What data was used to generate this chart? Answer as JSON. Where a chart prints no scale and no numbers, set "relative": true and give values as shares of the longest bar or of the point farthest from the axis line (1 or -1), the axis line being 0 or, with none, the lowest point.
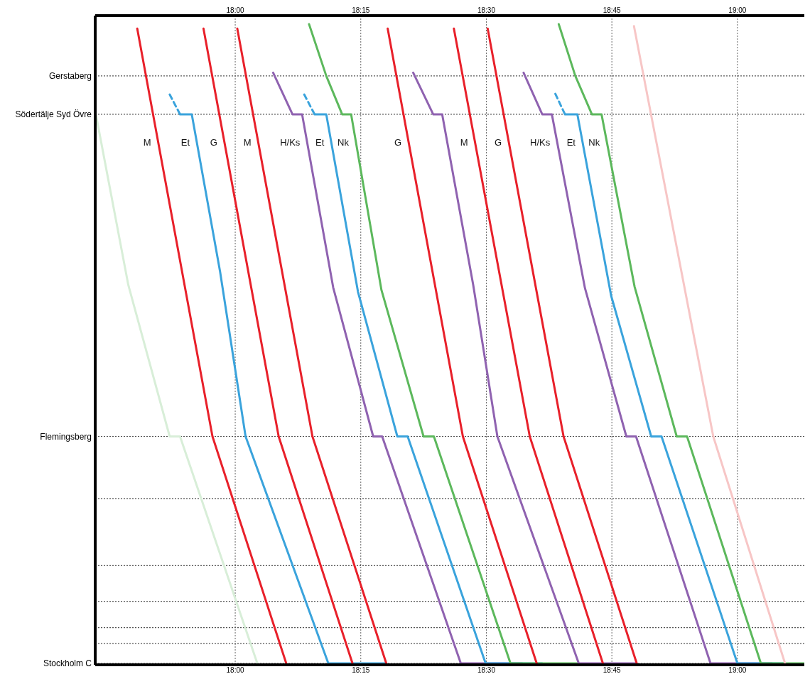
{
  "chart_data": {
    "type": "line",
    "relative": true,
    "grid": "x",
    "marker": "none",
    "line_style": "solid",
    "x2lim": [
      17.7212,
      19.1332
    ],
    "xlim": [
      17.7212,
      19.1332
    ],
    "xticks": [
      {
        "value": 18,
        "label": "18:00"
      },
      {
        "value": 18.25,
        "label": "18:15"
      },
      {
        "value": 18.5,
        "label": "18:30"
      },
      {
        "value": 18.75,
        "label": "18:45"
      },
      {
        "value": 19,
        "label": "19:00"
      }
    ],
    "x2ticks": [
      {
        "value": 18,
        "label": "18:00"
      },
      {
        "value": 18.25,
        "label": "18:15"
      },
      {
        "value": 18.5,
        "label": "18:30"
      },
      {
        "value": 18.75,
        "label": "18:45"
      },
      {
        "value": 19,
        "label": "19:00"
      }
    ],
    "ref_lines": [
      {
        "axis": "y",
        "value": 0.919,
        "label": "Gerstaberg",
        "line_style": "dotted"
      },
      {
        "axis": "y",
        "value": 0.859,
        "label": "Södertälje Syd Övre",
        "line_style": "dotted"
      },
      {
        "axis": "y",
        "value": 0.355,
        "label": "Flemingsberg",
        "line_style": "dotted"
      },
      {
        "axis": "y",
        "value": 0.258,
        "line_style": "dotted"
      },
      {
        "axis": "y",
        "value": 0.153,
        "line_style": "dotted"
      },
      {
        "axis": "y",
        "value": 0.097,
        "line_style": "dotted"
      },
      {
        "axis": "y",
        "value": 0.056,
        "line_style": "dotted"
      },
      {
        "axis": "y",
        "value": 0.031,
        "line_style": "dotted"
      },
      {
        "axis": "y",
        "value": 0,
        "label": "Stockholm C",
        "line_style": "dotted"
      }
    ],
    "series": [
      {
        "color": "#d8eed8",
        "x": [
          17.7225,
          17.7871,
          17.8695,
          17.8901,
          18.044
        ],
        "values": [
          0.859,
          0.592,
          0.355,
          0.355,
          0
        ]
      },
      {
        "name": "M",
        "color": "#e8202a",
        "x": [
          17.8049,
          17.9547,
          18.1016
        ],
        "values": [
          0.993,
          0.355,
          0
        ]
      },
      {
        "color": "#3aa3dc",
        "line_style": "dashed",
        "x": [
          17.8695,
          17.8901
        ],
        "values": [
          0.89,
          0.859
        ]
      },
      {
        "name": "Et",
        "color": "#3aa3dc",
        "x": [
          17.8901,
          17.9135,
          17.9698,
          18.0206,
          18.1854,
          18.3008
        ],
        "values": [
          0.859,
          0.859,
          0.613,
          0.355,
          0,
          0
        ]
      },
      {
        "name": "G",
        "color": "#e8202a",
        "x": [
          17.9368,
          18.0865,
          18.2335
        ],
        "values": [
          0.993,
          0.355,
          0
        ]
      },
      {
        "name": "M",
        "color": "#e8202a",
        "x": [
          18.0041,
          18.1538,
          18.3008
        ],
        "values": [
          0.993,
          0.355,
          0
        ]
      },
      {
        "name": "H/Ks",
        "color": "#8f62b0",
        "x": [
          18.0755,
          18.114,
          18.1332,
          18.1951,
          18.2747,
          18.2926,
          18.4492,
          18.5714
        ],
        "values": [
          0.924,
          0.859,
          0.859,
          0.588,
          0.355,
          0.355,
          0,
          0
        ]
      },
      {
        "color": "#3aa3dc",
        "line_style": "dashed",
        "x": [
          18.1374,
          18.158
        ],
        "values": [
          0.89,
          0.859
        ]
      },
      {
        "name": "Et",
        "color": "#3aa3dc",
        "x": [
          18.158,
          18.1813,
          18.2445,
          18.3228,
          18.3434,
          18.4986,
          18.6113
        ],
        "values": [
          0.859,
          0.859,
          0.581,
          0.355,
          0.355,
          0,
          0
        ]
      },
      {
        "name": "Nk",
        "color": "#5cb85c",
        "x": [
          18.147,
          18.1813,
          18.2129,
          18.2308,
          18.2912,
          18.375,
          18.3956,
          18.5481,
          18.6827
        ],
        "values": [
          1,
          0.919,
          0.859,
          0.859,
          0.584,
          0.355,
          0.355,
          0,
          0
        ]
      },
      {
        "name": "G",
        "color": "#e8202a",
        "x": [
          18.3036,
          18.4533,
          18.6003
        ],
        "values": [
          0.993,
          0.355,
          0
        ]
      },
      {
        "color": "#8f62b0",
        "x": [
          18.3544,
          18.3942,
          18.4121,
          18.4739,
          18.522,
          18.6841,
          18.7995
        ],
        "values": [
          0.924,
          0.859,
          0.859,
          0.592,
          0.355,
          0,
          0
        ]
      },
      {
        "name": "M",
        "color": "#e8202a",
        "x": [
          18.4354,
          18.5865,
          18.7321
        ],
        "values": [
          0.993,
          0.355,
          0
        ]
      },
      {
        "name": "G",
        "color": "#e8202a",
        "x": [
          18.5027,
          18.6538,
          18.7995
        ],
        "values": [
          0.993,
          0.355,
          0
        ]
      },
      {
        "name": "H/Ks",
        "color": "#8f62b0",
        "x": [
          18.5742,
          18.6113,
          18.6305,
          18.6964,
          18.7788,
          18.7981,
          18.9464,
          19.0687
        ],
        "values": [
          0.924,
          0.859,
          0.859,
          0.587,
          0.355,
          0.355,
          0,
          0
        ]
      },
      {
        "color": "#3aa3dc",
        "line_style": "dashed",
        "x": [
          18.6374,
          18.6566
        ],
        "values": [
          0.891,
          0.859
        ]
      },
      {
        "name": "Et",
        "color": "#3aa3dc",
        "x": [
          18.6566,
          18.6813,
          18.7486,
          18.8283,
          18.8489,
          19.0,
          19.0948
        ],
        "values": [
          0.859,
          0.859,
          0.575,
          0.355,
          0.355,
          0,
          0
        ]
      },
      {
        "name": "Nk",
        "color": "#5cb85c",
        "x": [
          18.6442,
          18.6772,
          18.7102,
          18.7294,
          18.7953,
          18.8791,
          18.8997,
          19.0467,
          19.1332
        ],
        "values": [
          1,
          0.919,
          0.859,
          0.859,
          0.589,
          0.355,
          0.355,
          0,
          0
        ]
      },
      {
        "color": "#f7c6c6",
        "x": [
          18.794,
          18.9519,
          19.0948
        ],
        "values": [
          0.997,
          0.355,
          0
        ]
      }
    ]
  }
}
